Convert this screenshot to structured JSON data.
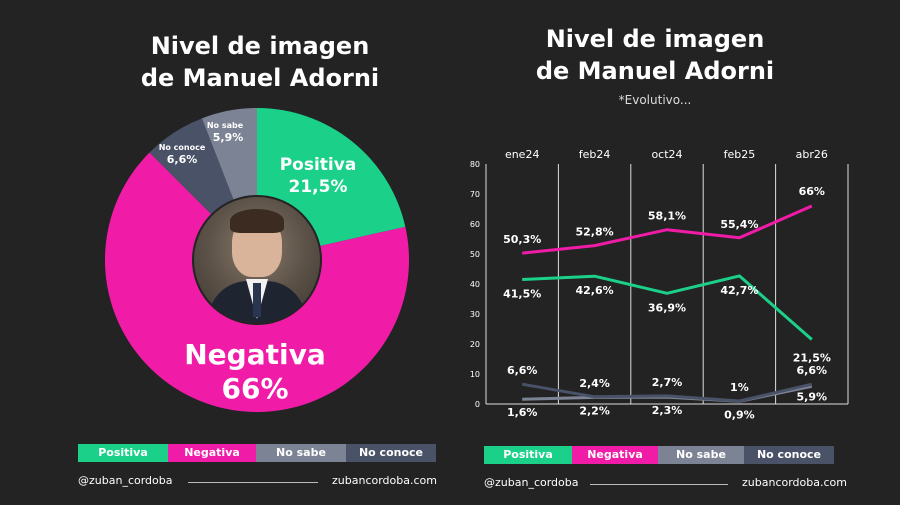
{
  "left": {
    "title_line1": "Nivel de imagen",
    "title_line2": "de  Manuel Adorni",
    "labels": {
      "positiva": "Positiva",
      "positiva_value": "21,5%",
      "negativa": "Negativa",
      "negativa_value": "66%",
      "no_sabe": "No sabe",
      "no_sabe_value": "5,9%",
      "no_conoce": "No conoce",
      "no_conoce_value": "6,6%"
    }
  },
  "right": {
    "title_line1": "Nivel de imagen",
    "title_line2": "de  Manuel Adorni",
    "subtitle": "*Evolutivo..."
  },
  "legend": [
    "Positiva",
    "Negativa",
    "No sabe",
    "No conoce"
  ],
  "footer": {
    "handle": "@zuban_cordoba",
    "site": "zubancordoba.com"
  },
  "colors": {
    "positiva": "#1bd18a",
    "negativa": "#f01ca8",
    "no_sabe": "#7c8394",
    "no_conoce": "#4a5268",
    "background": "#232323"
  },
  "chart_data": [
    {
      "type": "pie",
      "categories": [
        "Positiva",
        "Negativa",
        "No conoce",
        "No sabe"
      ],
      "values": [
        21.5,
        66,
        6.6,
        5.9
      ]
    },
    {
      "type": "line",
      "categories": [
        "ene24",
        "feb24",
        "oct24",
        "feb25",
        "abr26"
      ],
      "ylim": [
        0,
        80
      ],
      "yticks": [
        0,
        10,
        20,
        30,
        40,
        50,
        60,
        70,
        80
      ],
      "series": [
        {
          "name": "Negativa",
          "values": [
            50.3,
            52.8,
            58.1,
            55.4,
            66
          ],
          "labels": [
            "50,3%",
            "52,8%",
            "58,1%",
            "55,4%",
            "66%"
          ]
        },
        {
          "name": "Positiva",
          "values": [
            41.5,
            42.6,
            36.9,
            42.7,
            21.5
          ],
          "labels": [
            "41,5%",
            "42,6%",
            "36,9%",
            "42,7%",
            "21,5%"
          ]
        },
        {
          "name": "No conoce",
          "values": [
            6.6,
            2.4,
            2.7,
            1,
            6.6
          ],
          "labels": [
            "6,6%",
            "2,4%",
            "2,7%",
            "1%",
            "6,6%"
          ]
        },
        {
          "name": "No sabe",
          "values": [
            1.6,
            2.2,
            2.3,
            0.9,
            5.9
          ],
          "labels": [
            "1,6%",
            "2,2%",
            "2,3%",
            "0,9%",
            "5,9%"
          ]
        }
      ]
    }
  ]
}
